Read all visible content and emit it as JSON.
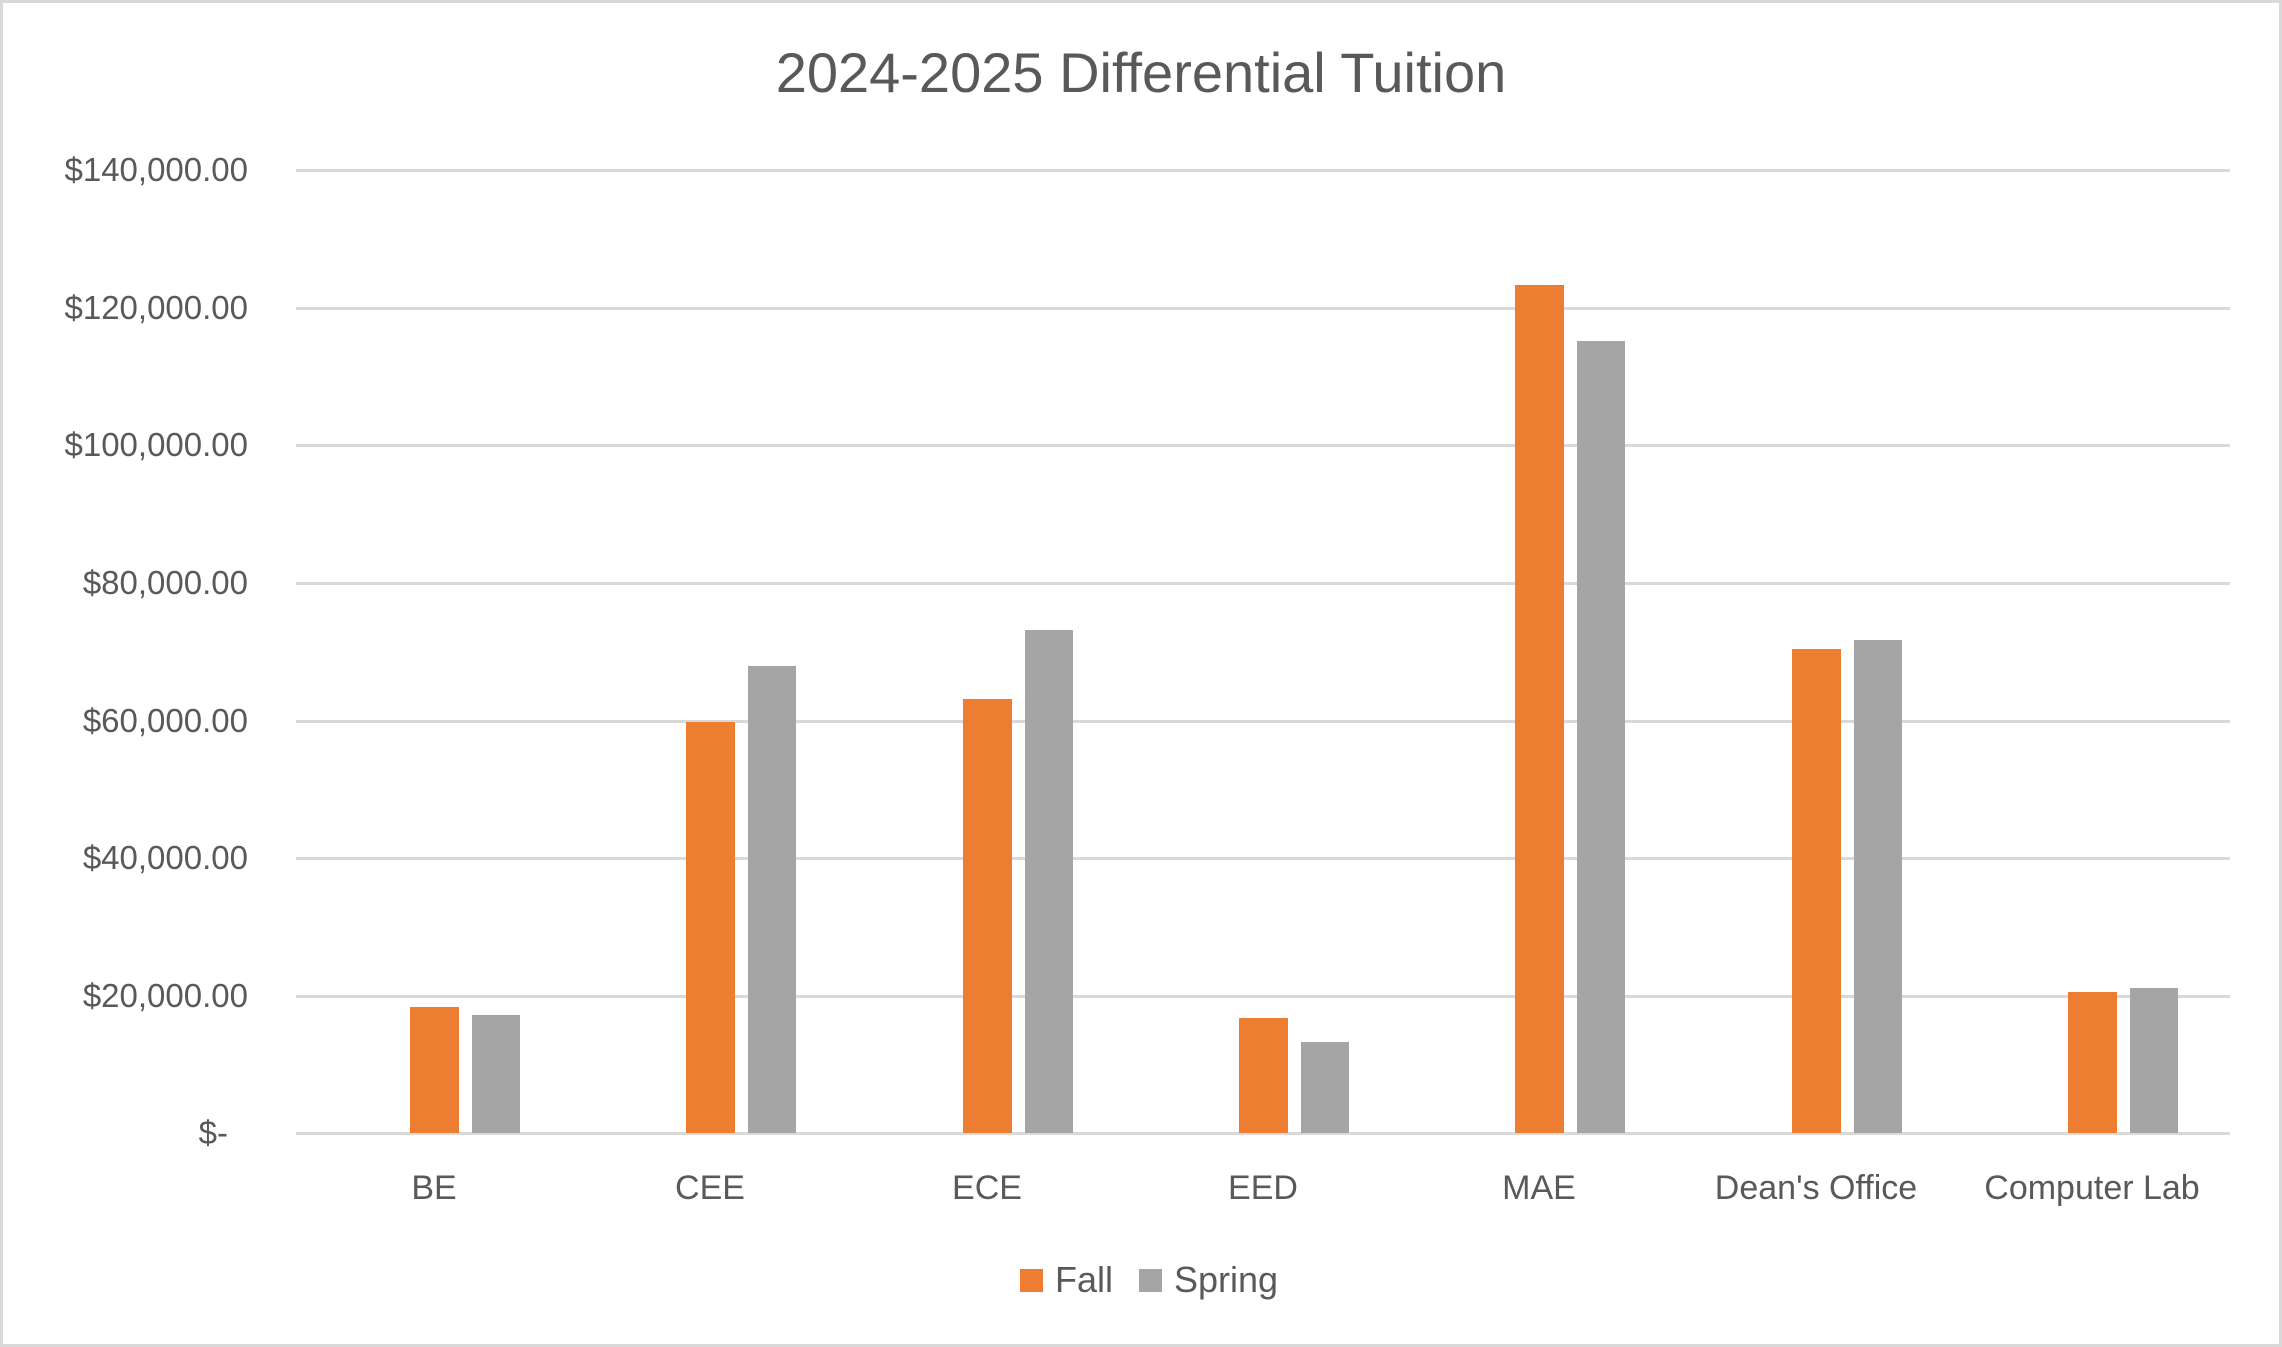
{
  "chart_data": {
    "type": "bar",
    "title": "2024-2025 Differential Tuition",
    "xlabel": "",
    "ylabel": "",
    "ylim": [
      0,
      140000
    ],
    "yticks": [
      0,
      20000,
      40000,
      60000,
      80000,
      100000,
      120000,
      140000
    ],
    "ytick_labels": [
      "$-",
      "$20,000.00",
      "$40,000.00",
      "$60,000.00",
      "$80,000.00",
      "$100,000.00",
      "$120,000.00",
      "$140,000.00"
    ],
    "grid": true,
    "legend_position": "bottom",
    "categories": [
      "BE",
      "CEE",
      "ECE",
      "EED",
      "MAE",
      "Dean's Office",
      "Computer Lab"
    ],
    "series": [
      {
        "name": "Fall",
        "color": "#ED7D31",
        "values": [
          18300,
          59750,
          63050,
          16700,
          123300,
          70300,
          20500
        ]
      },
      {
        "name": "Spring",
        "color": "#A5A5A5",
        "values": [
          17100,
          67900,
          73100,
          13200,
          115100,
          71600,
          21100
        ]
      }
    ]
  },
  "legend": {
    "fall_label": "Fall",
    "spring_label": "Spring"
  },
  "colors": {
    "fall": "#ED7D31",
    "spring": "#A5A5A5",
    "gridline": "#D9D9D9",
    "text": "#595959",
    "border": "#D9D9D9"
  }
}
